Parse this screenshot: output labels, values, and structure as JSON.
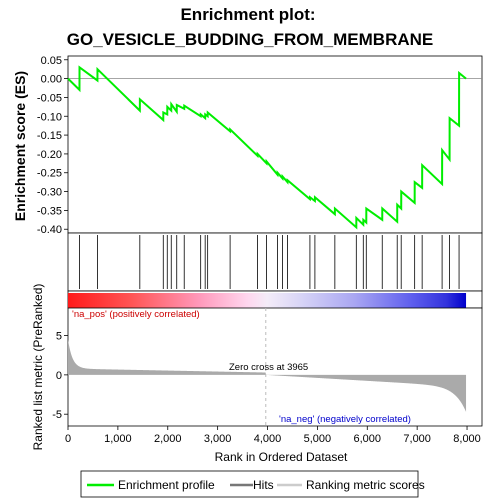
{
  "chart_data": {
    "type": "line",
    "title_line1": "Enrichment plot:",
    "title_line2": "GO_VESICLE_BUDDING_FROM_MEMBRANE",
    "es_ylabel": "Enrichment score (ES)",
    "es_yticks": [
      "0.05",
      "0.00",
      "-0.05",
      "-0.10",
      "-0.15",
      "-0.20",
      "-0.25",
      "-0.30",
      "-0.35",
      "-0.40"
    ],
    "es_ylim": [
      -0.41,
      0.06
    ],
    "xlim": [
      0,
      8300
    ],
    "xticks": [
      0,
      1000,
      2000,
      3000,
      4000,
      5000,
      6000,
      7000,
      8000
    ],
    "xtick_labels": [
      "0",
      "1,000",
      "2,000",
      "3,000",
      "4,000",
      "5,000",
      "6,000",
      "7,000",
      "8,000"
    ],
    "xlabel": "Rank in Ordered Dataset",
    "metric_ylabel": "Ranked list metric (PreRanked)",
    "metric_yticks": [
      "5",
      "0",
      "-5"
    ],
    "metric_ylim": [
      -6.5,
      8.5
    ],
    "zero_cross_label": "Zero cross at 3965",
    "zero_cross": 3965,
    "pos_label": "'na_pos' (positively correlated)",
    "neg_label": "'na_neg' (negatively correlated)",
    "total_genes": 7980,
    "hits": [
      230,
      590,
      1440,
      1910,
      1990,
      2070,
      2180,
      2330,
      2660,
      2750,
      2800,
      3250,
      3800,
      3980,
      4200,
      4300,
      4400,
      4850,
      4950,
      5350,
      5780,
      5920,
      5980,
      6300,
      6600,
      6680,
      6950,
      7100,
      7500,
      7650,
      7840
    ],
    "es_profile": [
      [
        0,
        0.0
      ],
      [
        230,
        -0.03
      ],
      [
        231,
        0.03
      ],
      [
        590,
        -0.005
      ],
      [
        591,
        0.025
      ],
      [
        1440,
        -0.085
      ],
      [
        1441,
        -0.055
      ],
      [
        1910,
        -0.11
      ],
      [
        1911,
        -0.09
      ],
      [
        1990,
        -0.095
      ],
      [
        1991,
        -0.075
      ],
      [
        2070,
        -0.085
      ],
      [
        2071,
        -0.068
      ],
      [
        2180,
        -0.088
      ],
      [
        2181,
        -0.07
      ],
      [
        2330,
        -0.08
      ],
      [
        2331,
        -0.072
      ],
      [
        2660,
        -0.1
      ],
      [
        2661,
        -0.095
      ],
      [
        2750,
        -0.105
      ],
      [
        2751,
        -0.095
      ],
      [
        2800,
        -0.1
      ],
      [
        2801,
        -0.09
      ],
      [
        3250,
        -0.14
      ],
      [
        3251,
        -0.135
      ],
      [
        3800,
        -0.205
      ],
      [
        3801,
        -0.2
      ],
      [
        3980,
        -0.225
      ],
      [
        3981,
        -0.22
      ],
      [
        4200,
        -0.255
      ],
      [
        4201,
        -0.25
      ],
      [
        4300,
        -0.265
      ],
      [
        4301,
        -0.26
      ],
      [
        4400,
        -0.275
      ],
      [
        4401,
        -0.27
      ],
      [
        4850,
        -0.32
      ],
      [
        4851,
        -0.315
      ],
      [
        4950,
        -0.325
      ],
      [
        4951,
        -0.315
      ],
      [
        5350,
        -0.36
      ],
      [
        5351,
        -0.345
      ],
      [
        5780,
        -0.395
      ],
      [
        5781,
        -0.37
      ],
      [
        5920,
        -0.388
      ],
      [
        5921,
        -0.375
      ],
      [
        5980,
        -0.382
      ],
      [
        5981,
        -0.345
      ],
      [
        6300,
        -0.375
      ],
      [
        6301,
        -0.345
      ],
      [
        6600,
        -0.38
      ],
      [
        6601,
        -0.335
      ],
      [
        6680,
        -0.345
      ],
      [
        6681,
        -0.3
      ],
      [
        6950,
        -0.33
      ],
      [
        6951,
        -0.275
      ],
      [
        7100,
        -0.29
      ],
      [
        7101,
        -0.23
      ],
      [
        7500,
        -0.28
      ],
      [
        7501,
        -0.19
      ],
      [
        7650,
        -0.215
      ],
      [
        7651,
        -0.105
      ],
      [
        7840,
        -0.125
      ],
      [
        7841,
        0.015
      ],
      [
        7980,
        0.0
      ]
    ],
    "colors": {
      "profile": "#00ee00",
      "hits": "#000000",
      "pos_text": "#cc0000",
      "neg_text": "#0000cc",
      "zero_line": "#bbbbbb",
      "metric_fill": "#aaaaaa"
    },
    "legend": [
      "Enrichment profile",
      "Hits",
      "Ranking metric scores"
    ]
  }
}
